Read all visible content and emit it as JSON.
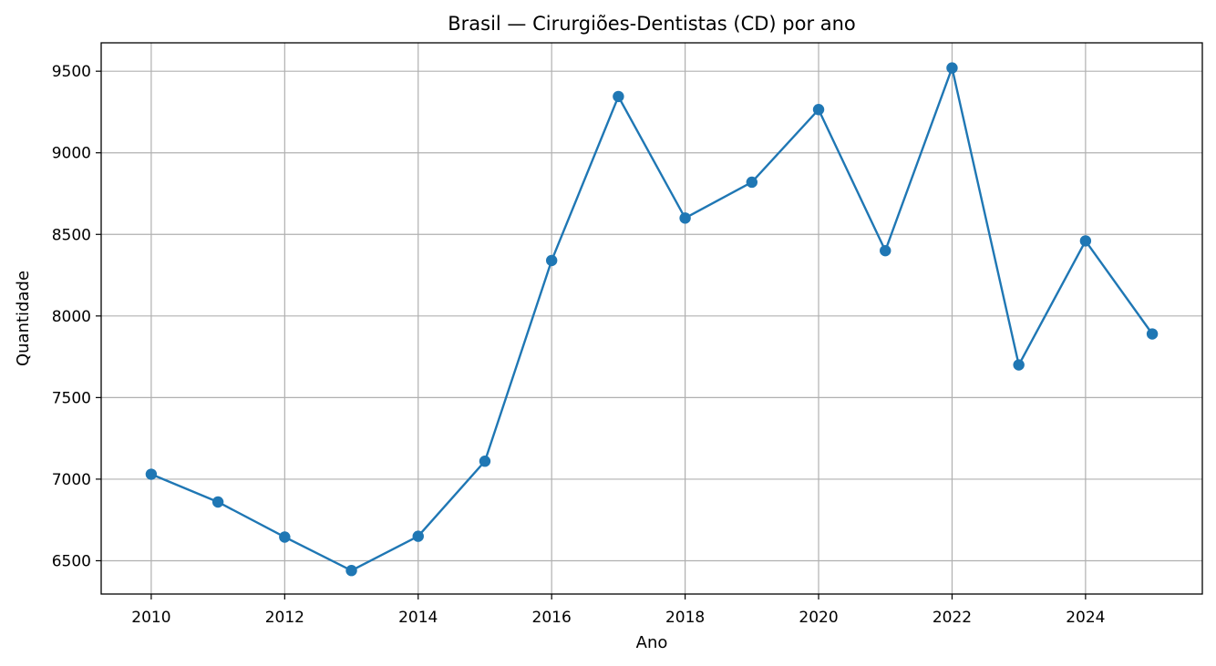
{
  "chart_data": {
    "type": "line",
    "title": "Brasil — Cirurgiões-Dentistas (CD) por ano",
    "xlabel": "Ano",
    "ylabel": "Quantidade",
    "x": [
      2010,
      2011,
      2012,
      2013,
      2014,
      2015,
      2016,
      2017,
      2018,
      2019,
      2020,
      2021,
      2022,
      2023,
      2024,
      2025
    ],
    "series": [
      {
        "values": [
          7030,
          6860,
          6645,
          6440,
          6650,
          7110,
          8340,
          9345,
          8600,
          8820,
          9265,
          8400,
          9520,
          7700,
          8460,
          7890
        ],
        "color": "#1f77b4",
        "marker": "circle"
      }
    ],
    "xlim": [
      2009.25,
      2025.75
    ],
    "ylim": [
      6296,
      9674
    ],
    "xticks": [
      2010,
      2012,
      2014,
      2016,
      2018,
      2020,
      2022,
      2024
    ],
    "yticks": [
      6500,
      7000,
      7500,
      8000,
      8500,
      9000,
      9500
    ],
    "grid": true,
    "legend": "none"
  }
}
